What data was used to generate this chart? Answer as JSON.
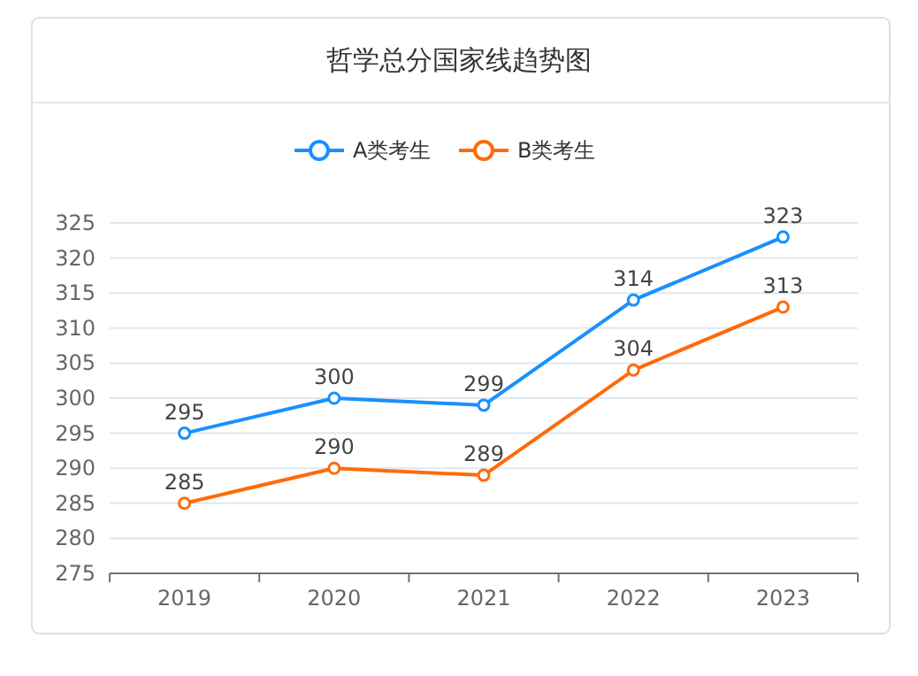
{
  "chart_data": {
    "type": "line",
    "title": "哲学总分国家线趋势图",
    "categories": [
      "2019",
      "2020",
      "2021",
      "2022",
      "2023"
    ],
    "series": [
      {
        "name": "A类考生",
        "color": "#1890ff",
        "values": [
          295,
          300,
          299,
          314,
          323
        ]
      },
      {
        "name": "B类考生",
        "color": "#ff6a0a",
        "values": [
          285,
          290,
          289,
          304,
          313
        ]
      }
    ],
    "ylim": [
      275,
      325
    ],
    "yticks": [
      275,
      280,
      285,
      290,
      295,
      300,
      305,
      310,
      315,
      320,
      325
    ],
    "grid": "y",
    "legend": "top",
    "marker": "circle",
    "line_style": "solid",
    "data_labels": true
  }
}
